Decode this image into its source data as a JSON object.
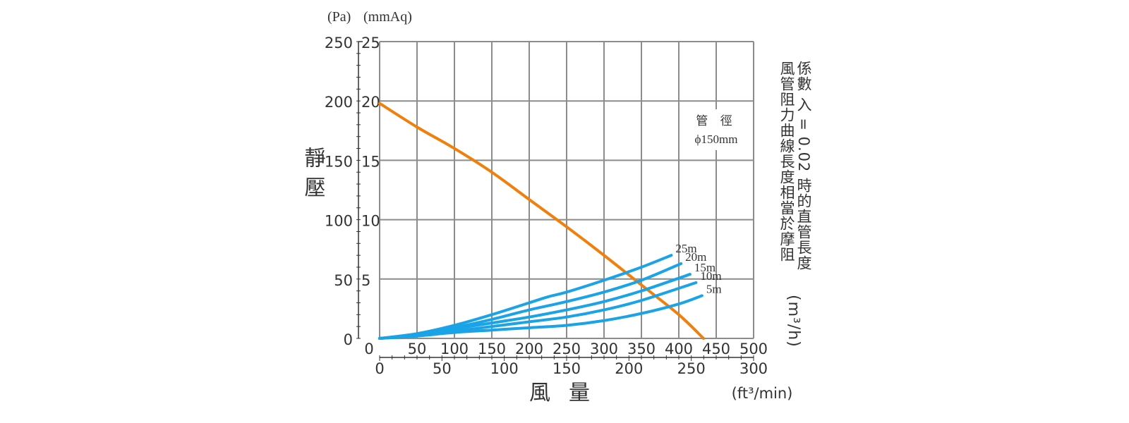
{
  "chart_data": {
    "type": "line",
    "y_unit_left": "(Pa)",
    "y_unit_right": "(mmAq)",
    "ylabel": "靜壓",
    "xlabel": "風量",
    "x_unit_secondary": "(ft³/min)",
    "x_unit_primary": "(m³/h)",
    "xlim": [
      0,
      500
    ],
    "ylim": [
      0,
      250
    ],
    "x_ticks": [
      0,
      50,
      100,
      150,
      200,
      250,
      300,
      350,
      400,
      450,
      500
    ],
    "y_ticks_pa": [
      0,
      50,
      100,
      150,
      200,
      250
    ],
    "y_ticks_mmaq": [
      5,
      10,
      15,
      20,
      25
    ],
    "x2_ticks": [
      0,
      50,
      100,
      150,
      200,
      250,
      300
    ],
    "grid": true,
    "annotation_pipe": [
      "管 徑",
      "ϕ150mm"
    ],
    "right_note": [
      "風管阻力曲線長度相當於摩阻",
      "係數  入 = 0.02 時的直管長度"
    ],
    "colors": {
      "fan": "#f07f0c",
      "duct": "#1aa3e6",
      "grid": "#8c8c8c"
    },
    "series": [
      {
        "x": [
          0,
          50,
          100,
          150,
          200,
          250,
          300,
          350,
          400,
          433
        ],
        "y": [
          198,
          178,
          160,
          140,
          117,
          94,
          70,
          45,
          20,
          0
        ]
      },
      {
        "name": "25m",
        "x": [
          0,
          50,
          100,
          150,
          200,
          225,
          250,
          300,
          350,
          390
        ],
        "y": [
          0,
          4,
          11,
          20,
          30,
          35,
          39,
          49,
          60,
          70
        ]
      },
      {
        "name": "20m",
        "x": [
          0,
          50,
          100,
          150,
          200,
          250,
          300,
          350,
          403
        ],
        "y": [
          0,
          3,
          9,
          16,
          24,
          31,
          39,
          49,
          63
        ]
      },
      {
        "name": "15m",
        "x": [
          0,
          50,
          100,
          150,
          200,
          250,
          300,
          350,
          415
        ],
        "y": [
          0,
          3,
          8,
          13,
          18,
          24,
          31,
          40,
          54
        ]
      },
      {
        "name": "10m",
        "x": [
          0,
          50,
          100,
          150,
          200,
          250,
          300,
          350,
          423
        ],
        "y": [
          0,
          2,
          6,
          10,
          14,
          18,
          24,
          32,
          47
        ]
      },
      {
        "name": "5m",
        "x": [
          0,
          50,
          100,
          150,
          200,
          250,
          300,
          350,
          400,
          431
        ],
        "y": [
          0,
          2,
          5,
          7,
          9,
          11,
          15,
          21,
          29,
          36
        ]
      }
    ]
  }
}
